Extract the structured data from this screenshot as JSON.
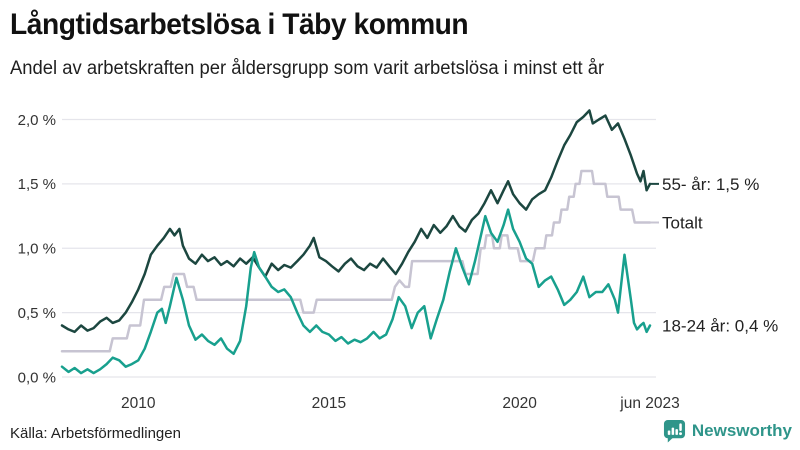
{
  "header": {
    "title": "Långtidsarbetslösa i Täby kommun",
    "subtitle": "Andel av arbetskraften per åldersgrupp som varit arbetslösa i minst ett år"
  },
  "footer": {
    "source": "Källa: Arbetsförmedlingen",
    "brand": "Newsworthy",
    "brand_color": "#2f958a"
  },
  "chart_data": {
    "type": "line",
    "title": "Långtidsarbetslösa i Täby kommun",
    "subtitle": "Andel av arbetskraften per åldersgrupp som varit arbetslösa i minst ett år",
    "unit": "% av arbetskraften",
    "x_domain": [
      2008.0,
      2023.42
    ],
    "y_domain": [
      0,
      2.0
    ],
    "grid": true,
    "legend_position": "right-end-labels",
    "colors": {
      "grid": "#e5e5eb",
      "axis_text": "#333333",
      "label_text": "#222222"
    },
    "y_ticks": [
      {
        "value": 0.0,
        "label": "0,0 %"
      },
      {
        "value": 0.5,
        "label": "0,5 %"
      },
      {
        "value": 1.0,
        "label": "1,0 %"
      },
      {
        "value": 1.5,
        "label": "1,5 %"
      },
      {
        "value": 2.0,
        "label": "2,0 %"
      }
    ],
    "x_ticks": [
      {
        "value": 2010,
        "label": "2010"
      },
      {
        "value": 2015,
        "label": "2015"
      },
      {
        "value": 2020,
        "label": "2020"
      },
      {
        "value": 2023.42,
        "label": "jun 2023"
      }
    ],
    "series": [
      {
        "id": "totalt",
        "name": "Totalt",
        "end_label": "Totalt",
        "end_value": 1.2,
        "color": "#c7c4d2",
        "connector": true,
        "points": [
          [
            2008.0,
            0.2
          ],
          [
            2009.25,
            0.2
          ],
          [
            2009.33,
            0.3
          ],
          [
            2009.7,
            0.3
          ],
          [
            2009.78,
            0.4
          ],
          [
            2010.05,
            0.4
          ],
          [
            2010.15,
            0.6
          ],
          [
            2010.6,
            0.6
          ],
          [
            2010.68,
            0.7
          ],
          [
            2010.85,
            0.7
          ],
          [
            2010.93,
            0.8
          ],
          [
            2011.2,
            0.8
          ],
          [
            2011.28,
            0.7
          ],
          [
            2011.45,
            0.7
          ],
          [
            2011.53,
            0.6
          ],
          [
            2014.25,
            0.6
          ],
          [
            2014.33,
            0.5
          ],
          [
            2014.6,
            0.5
          ],
          [
            2014.68,
            0.6
          ],
          [
            2016.65,
            0.6
          ],
          [
            2016.73,
            0.7
          ],
          [
            2016.85,
            0.75
          ],
          [
            2017.0,
            0.7
          ],
          [
            2017.1,
            0.7
          ],
          [
            2017.18,
            0.9
          ],
          [
            2018.5,
            0.9
          ],
          [
            2018.58,
            0.8
          ],
          [
            2018.9,
            0.8
          ],
          [
            2018.98,
            1.0
          ],
          [
            2019.08,
            1.0
          ],
          [
            2019.13,
            1.1
          ],
          [
            2019.28,
            1.1
          ],
          [
            2019.33,
            1.0
          ],
          [
            2019.48,
            1.0
          ],
          [
            2019.53,
            1.1
          ],
          [
            2019.68,
            1.1
          ],
          [
            2019.73,
            1.0
          ],
          [
            2019.95,
            1.0
          ],
          [
            2020.02,
            0.9
          ],
          [
            2020.35,
            0.9
          ],
          [
            2020.42,
            1.0
          ],
          [
            2020.65,
            1.0
          ],
          [
            2020.7,
            1.1
          ],
          [
            2020.85,
            1.1
          ],
          [
            2020.9,
            1.2
          ],
          [
            2021.05,
            1.2
          ],
          [
            2021.1,
            1.3
          ],
          [
            2021.25,
            1.3
          ],
          [
            2021.3,
            1.4
          ],
          [
            2021.42,
            1.4
          ],
          [
            2021.47,
            1.5
          ],
          [
            2021.57,
            1.5
          ],
          [
            2021.62,
            1.6
          ],
          [
            2021.9,
            1.6
          ],
          [
            2021.95,
            1.5
          ],
          [
            2022.25,
            1.5
          ],
          [
            2022.3,
            1.4
          ],
          [
            2022.6,
            1.4
          ],
          [
            2022.65,
            1.3
          ],
          [
            2022.95,
            1.3
          ],
          [
            2023.02,
            1.2
          ],
          [
            2023.42,
            1.2
          ]
        ]
      },
      {
        "id": "55-ar",
        "name": "55- år",
        "end_label": "55- år: 1,5 %",
        "end_value": 1.5,
        "color": "#1c4740",
        "connector": true,
        "points": [
          [
            2008.0,
            0.4
          ],
          [
            2008.17,
            0.37
          ],
          [
            2008.33,
            0.35
          ],
          [
            2008.5,
            0.4
          ],
          [
            2008.67,
            0.36
          ],
          [
            2008.83,
            0.38
          ],
          [
            2009.0,
            0.43
          ],
          [
            2009.17,
            0.46
          ],
          [
            2009.33,
            0.42
          ],
          [
            2009.5,
            0.44
          ],
          [
            2009.67,
            0.5
          ],
          [
            2009.83,
            0.58
          ],
          [
            2010.0,
            0.68
          ],
          [
            2010.17,
            0.8
          ],
          [
            2010.33,
            0.95
          ],
          [
            2010.5,
            1.02
          ],
          [
            2010.67,
            1.08
          ],
          [
            2010.83,
            1.15
          ],
          [
            2010.95,
            1.1
          ],
          [
            2011.08,
            1.15
          ],
          [
            2011.17,
            1.02
          ],
          [
            2011.33,
            0.92
          ],
          [
            2011.5,
            0.88
          ],
          [
            2011.67,
            0.95
          ],
          [
            2011.83,
            0.9
          ],
          [
            2012.0,
            0.93
          ],
          [
            2012.17,
            0.87
          ],
          [
            2012.33,
            0.9
          ],
          [
            2012.5,
            0.86
          ],
          [
            2012.67,
            0.92
          ],
          [
            2012.83,
            0.88
          ],
          [
            2013.0,
            0.93
          ],
          [
            2013.17,
            0.85
          ],
          [
            2013.33,
            0.78
          ],
          [
            2013.5,
            0.88
          ],
          [
            2013.67,
            0.83
          ],
          [
            2013.83,
            0.87
          ],
          [
            2014.0,
            0.85
          ],
          [
            2014.17,
            0.9
          ],
          [
            2014.33,
            0.95
          ],
          [
            2014.5,
            1.02
          ],
          [
            2014.6,
            1.08
          ],
          [
            2014.75,
            0.93
          ],
          [
            2014.92,
            0.9
          ],
          [
            2015.08,
            0.86
          ],
          [
            2015.25,
            0.82
          ],
          [
            2015.42,
            0.88
          ],
          [
            2015.58,
            0.92
          ],
          [
            2015.75,
            0.86
          ],
          [
            2015.92,
            0.83
          ],
          [
            2016.08,
            0.88
          ],
          [
            2016.25,
            0.85
          ],
          [
            2016.42,
            0.92
          ],
          [
            2016.58,
            0.86
          ],
          [
            2016.75,
            0.8
          ],
          [
            2016.92,
            0.88
          ],
          [
            2017.08,
            0.97
          ],
          [
            2017.25,
            1.05
          ],
          [
            2017.42,
            1.15
          ],
          [
            2017.58,
            1.08
          ],
          [
            2017.75,
            1.18
          ],
          [
            2017.92,
            1.12
          ],
          [
            2018.08,
            1.17
          ],
          [
            2018.25,
            1.25
          ],
          [
            2018.42,
            1.17
          ],
          [
            2018.58,
            1.13
          ],
          [
            2018.75,
            1.22
          ],
          [
            2018.92,
            1.27
          ],
          [
            2019.08,
            1.35
          ],
          [
            2019.25,
            1.45
          ],
          [
            2019.42,
            1.35
          ],
          [
            2019.58,
            1.45
          ],
          [
            2019.7,
            1.52
          ],
          [
            2019.83,
            1.42
          ],
          [
            2020.0,
            1.35
          ],
          [
            2020.17,
            1.3
          ],
          [
            2020.33,
            1.38
          ],
          [
            2020.5,
            1.42
          ],
          [
            2020.67,
            1.45
          ],
          [
            2020.83,
            1.55
          ],
          [
            2021.0,
            1.68
          ],
          [
            2021.17,
            1.8
          ],
          [
            2021.33,
            1.88
          ],
          [
            2021.5,
            1.98
          ],
          [
            2021.67,
            2.02
          ],
          [
            2021.83,
            2.07
          ],
          [
            2021.92,
            1.97
          ],
          [
            2022.08,
            2.0
          ],
          [
            2022.25,
            2.03
          ],
          [
            2022.42,
            1.92
          ],
          [
            2022.58,
            1.97
          ],
          [
            2022.75,
            1.85
          ],
          [
            2022.92,
            1.72
          ],
          [
            2023.08,
            1.58
          ],
          [
            2023.17,
            1.52
          ],
          [
            2023.25,
            1.6
          ],
          [
            2023.33,
            1.45
          ],
          [
            2023.42,
            1.5
          ]
        ]
      },
      {
        "id": "18-24-ar",
        "name": "18-24 år",
        "end_label": "18-24 år: 0,4 %",
        "end_value": 0.4,
        "color": "#18a08e",
        "connector": false,
        "points": [
          [
            2008.0,
            0.08
          ],
          [
            2008.17,
            0.04
          ],
          [
            2008.33,
            0.07
          ],
          [
            2008.5,
            0.03
          ],
          [
            2008.67,
            0.06
          ],
          [
            2008.83,
            0.03
          ],
          [
            2009.0,
            0.06
          ],
          [
            2009.17,
            0.1
          ],
          [
            2009.33,
            0.15
          ],
          [
            2009.5,
            0.13
          ],
          [
            2009.67,
            0.08
          ],
          [
            2009.83,
            0.1
          ],
          [
            2010.0,
            0.13
          ],
          [
            2010.17,
            0.22
          ],
          [
            2010.33,
            0.35
          ],
          [
            2010.5,
            0.5
          ],
          [
            2010.62,
            0.53
          ],
          [
            2010.72,
            0.42
          ],
          [
            2010.83,
            0.55
          ],
          [
            2011.0,
            0.77
          ],
          [
            2011.17,
            0.6
          ],
          [
            2011.33,
            0.4
          ],
          [
            2011.5,
            0.29
          ],
          [
            2011.67,
            0.33
          ],
          [
            2011.83,
            0.28
          ],
          [
            2012.0,
            0.25
          ],
          [
            2012.17,
            0.3
          ],
          [
            2012.33,
            0.22
          ],
          [
            2012.5,
            0.18
          ],
          [
            2012.67,
            0.28
          ],
          [
            2012.83,
            0.55
          ],
          [
            2012.95,
            0.85
          ],
          [
            2013.04,
            0.97
          ],
          [
            2013.17,
            0.85
          ],
          [
            2013.33,
            0.78
          ],
          [
            2013.5,
            0.7
          ],
          [
            2013.67,
            0.66
          ],
          [
            2013.83,
            0.68
          ],
          [
            2014.0,
            0.62
          ],
          [
            2014.17,
            0.5
          ],
          [
            2014.33,
            0.4
          ],
          [
            2014.5,
            0.35
          ],
          [
            2014.67,
            0.4
          ],
          [
            2014.83,
            0.35
          ],
          [
            2015.0,
            0.33
          ],
          [
            2015.17,
            0.28
          ],
          [
            2015.33,
            0.31
          ],
          [
            2015.5,
            0.26
          ],
          [
            2015.67,
            0.29
          ],
          [
            2015.83,
            0.27
          ],
          [
            2016.0,
            0.3
          ],
          [
            2016.17,
            0.35
          ],
          [
            2016.33,
            0.3
          ],
          [
            2016.5,
            0.33
          ],
          [
            2016.67,
            0.45
          ],
          [
            2016.83,
            0.62
          ],
          [
            2017.0,
            0.55
          ],
          [
            2017.17,
            0.38
          ],
          [
            2017.33,
            0.5
          ],
          [
            2017.5,
            0.55
          ],
          [
            2017.67,
            0.3
          ],
          [
            2017.83,
            0.45
          ],
          [
            2018.0,
            0.6
          ],
          [
            2018.17,
            0.82
          ],
          [
            2018.33,
            1.0
          ],
          [
            2018.5,
            0.85
          ],
          [
            2018.67,
            0.72
          ],
          [
            2018.83,
            0.9
          ],
          [
            2019.0,
            1.12
          ],
          [
            2019.1,
            1.25
          ],
          [
            2019.25,
            1.12
          ],
          [
            2019.42,
            1.05
          ],
          [
            2019.58,
            1.18
          ],
          [
            2019.7,
            1.3
          ],
          [
            2019.83,
            1.15
          ],
          [
            2020.0,
            1.05
          ],
          [
            2020.17,
            0.92
          ],
          [
            2020.33,
            0.88
          ],
          [
            2020.5,
            0.7
          ],
          [
            2020.67,
            0.75
          ],
          [
            2020.83,
            0.78
          ],
          [
            2021.0,
            0.68
          ],
          [
            2021.17,
            0.56
          ],
          [
            2021.33,
            0.6
          ],
          [
            2021.5,
            0.66
          ],
          [
            2021.67,
            0.78
          ],
          [
            2021.83,
            0.62
          ],
          [
            2022.0,
            0.66
          ],
          [
            2022.17,
            0.66
          ],
          [
            2022.33,
            0.72
          ],
          [
            2022.5,
            0.6
          ],
          [
            2022.58,
            0.5
          ],
          [
            2022.75,
            0.95
          ],
          [
            2022.92,
            0.6
          ],
          [
            2023.0,
            0.42
          ],
          [
            2023.08,
            0.37
          ],
          [
            2023.17,
            0.4
          ],
          [
            2023.25,
            0.42
          ],
          [
            2023.33,
            0.35
          ],
          [
            2023.42,
            0.4
          ]
        ]
      }
    ]
  }
}
